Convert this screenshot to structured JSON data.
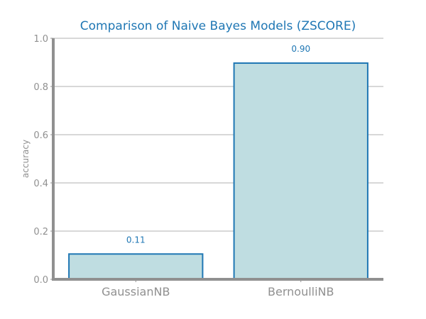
{
  "chart_data": {
    "type": "bar",
    "title": "Comparison of Naive Bayes Models (ZSCORE)",
    "xlabel": "",
    "ylabel": "accuracy",
    "categories": [
      "GaussianNB",
      "BernoulliNB"
    ],
    "values": [
      0.105,
      0.897
    ],
    "value_labels": [
      "0.11",
      "0.90"
    ],
    "ylim": [
      0,
      1.0
    ],
    "yticks": [
      0.0,
      0.2,
      0.4,
      0.6,
      0.8,
      1.0
    ],
    "ytick_labels": [
      "0.0",
      "0.2",
      "0.4",
      "0.6",
      "0.8",
      "1.0"
    ],
    "grid": true,
    "colors": {
      "bar_fill": "#bfdde1",
      "bar_edge": "#1f77b4",
      "title": "#1f77b4",
      "axis": "#909090",
      "grid": "#cccccc",
      "data_label": "#1f77b4"
    }
  }
}
